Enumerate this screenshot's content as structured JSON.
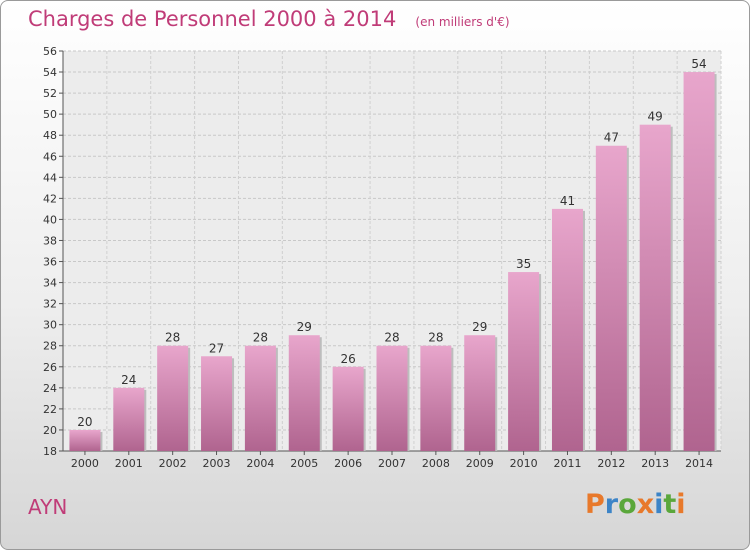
{
  "header": {
    "title": "Charges de Personnel 2000 à 2014",
    "unit": "(en milliers d'€)"
  },
  "footer": {
    "place": "AYN",
    "logo_text": "Proxiti"
  },
  "colors": {
    "bar_top": "#e8a6cc",
    "bar_bottom": "#b0648f",
    "accent": "#c03c78",
    "logo_letters": [
      "#e8792b",
      "#3c84c7",
      "#5aa73b",
      "#e8792b",
      "#3c84c7",
      "#5aa73b",
      "#e8792b"
    ]
  },
  "chart_data": {
    "type": "bar",
    "title": "Charges de Personnel 2000 à 2014",
    "subtitle": "(en milliers d'€)",
    "categories": [
      "2000",
      "2001",
      "2002",
      "2003",
      "2004",
      "2005",
      "2006",
      "2007",
      "2008",
      "2009",
      "2010",
      "2011",
      "2012",
      "2013",
      "2014"
    ],
    "values": [
      20,
      24,
      28,
      27,
      28,
      29,
      26,
      28,
      28,
      29,
      35,
      41,
      47,
      49,
      54
    ],
    "ylim": [
      18,
      56
    ],
    "yticks": [
      18,
      20,
      22,
      24,
      26,
      28,
      30,
      32,
      34,
      36,
      38,
      40,
      42,
      44,
      46,
      48,
      50,
      52,
      54,
      56
    ],
    "grid": true,
    "xlabel": "",
    "ylabel": ""
  }
}
